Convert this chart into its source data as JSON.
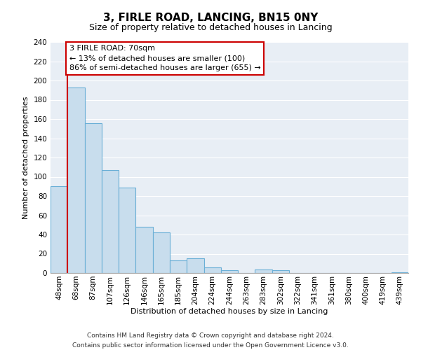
{
  "title": "3, FIRLE ROAD, LANCING, BN15 0NY",
  "subtitle": "Size of property relative to detached houses in Lancing",
  "xlabel": "Distribution of detached houses by size in Lancing",
  "ylabel": "Number of detached properties",
  "categories": [
    "48sqm",
    "68sqm",
    "87sqm",
    "107sqm",
    "126sqm",
    "146sqm",
    "165sqm",
    "185sqm",
    "204sqm",
    "224sqm",
    "244sqm",
    "263sqm",
    "283sqm",
    "302sqm",
    "322sqm",
    "341sqm",
    "361sqm",
    "380sqm",
    "400sqm",
    "419sqm",
    "439sqm"
  ],
  "values": [
    90,
    193,
    156,
    107,
    89,
    48,
    42,
    13,
    15,
    6,
    3,
    0,
    4,
    3,
    0,
    0,
    0,
    0,
    0,
    0,
    1
  ],
  "bar_color": "#c8dded",
  "bar_edge_color": "#6aafd6",
  "marker_line_color": "#cc0000",
  "annotation_title": "3 FIRLE ROAD: 70sqm",
  "annotation_line1": "← 13% of detached houses are smaller (100)",
  "annotation_line2": "86% of semi-detached houses are larger (655) →",
  "annotation_box_color": "#ffffff",
  "annotation_box_edge": "#cc0000",
  "ylim": [
    0,
    240
  ],
  "yticks": [
    0,
    20,
    40,
    60,
    80,
    100,
    120,
    140,
    160,
    180,
    200,
    220,
    240
  ],
  "footer1": "Contains HM Land Registry data © Crown copyright and database right 2024.",
  "footer2": "Contains public sector information licensed under the Open Government Licence v3.0.",
  "bg_color": "#ffffff",
  "plot_bg_color": "#e8eef5",
  "grid_color": "#ffffff",
  "title_fontsize": 11,
  "subtitle_fontsize": 9,
  "xlabel_fontsize": 8,
  "ylabel_fontsize": 8,
  "tick_fontsize": 7.5,
  "footer_fontsize": 6.5,
  "annot_fontsize": 8
}
